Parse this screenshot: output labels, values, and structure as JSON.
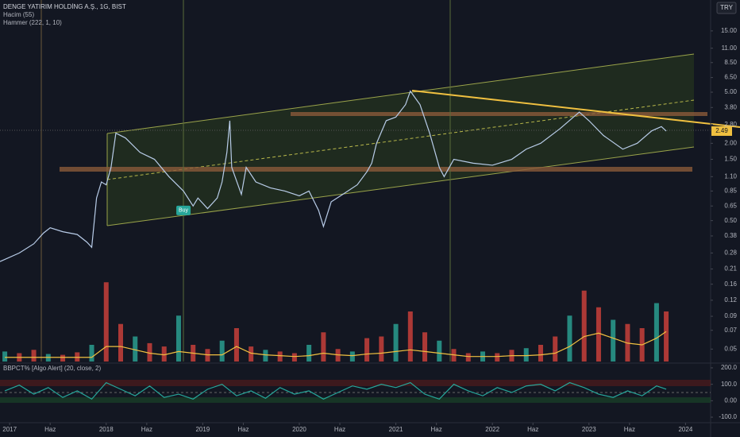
{
  "header": {
    "title": "DENGE YATIRIM HOLDİNG A.Ş., 1G, BIST",
    "volume_label": "Hacim (55)",
    "hammer_label": "Hammer (222, 1, 10)",
    "currency": "TRY",
    "oscillator_label": "BBPCT% [Algo Alert] (20, close, 2)"
  },
  "chart_data": [
    {
      "type": "line",
      "log_scale": true,
      "xlim": [
        2016.9,
        2024.26
      ],
      "xticks": [
        2017,
        {
          "value": 2017.42,
          "label": "Haz"
        },
        2018,
        {
          "value": 2018.42,
          "label": "Haz"
        },
        2019,
        {
          "value": 2019.42,
          "label": "Haz"
        },
        2020,
        {
          "value": 2020.42,
          "label": "Haz"
        },
        2021,
        {
          "value": 2021.42,
          "label": "Haz"
        },
        2022,
        {
          "value": 2022.42,
          "label": "Haz"
        },
        2023,
        {
          "value": 2023.42,
          "label": "Haz"
        },
        2024
      ],
      "ylim": [
        0.04,
        26.1
      ],
      "yticks": [
        {
          "value": 15,
          "label": "15.00"
        },
        {
          "value": 11,
          "label": "11.00"
        },
        {
          "value": 8.5,
          "label": "8.50"
        },
        {
          "value": 6.5,
          "label": "6.50"
        },
        {
          "value": 5,
          "label": "5.00"
        },
        {
          "value": 3.8,
          "label": "3.80"
        },
        {
          "value": 2.8,
          "label": "2.80"
        },
        {
          "value": 2,
          "label": "2.00"
        },
        {
          "value": 1.5,
          "label": "1.50"
        },
        {
          "value": 1.1,
          "label": "1.10"
        },
        {
          "value": 0.85,
          "label": "0.85"
        },
        {
          "value": 0.65,
          "label": "0.65"
        },
        {
          "value": 0.5,
          "label": "0.50"
        },
        {
          "value": 0.38,
          "label": "0.38"
        },
        {
          "value": 0.28,
          "label": "0.28"
        },
        {
          "value": 0.21,
          "label": "0.21"
        },
        {
          "value": 0.16,
          "label": "0.16"
        },
        {
          "value": 0.12,
          "label": "0.12"
        },
        {
          "value": 0.09,
          "label": "0.09"
        },
        {
          "value": 0.07,
          "label": "0.07"
        },
        {
          "value": 0.05,
          "label": "0.05"
        }
      ],
      "last_value": 2.49,
      "annotation": {
        "text": "Buy",
        "x": 2018.8,
        "y": 0.6
      },
      "x": [
        2016.9,
        2017.1,
        2017.25,
        2017.35,
        2017.42,
        2017.55,
        2017.7,
        2017.8,
        2017.85,
        2017.9,
        2017.95,
        2018.0,
        2018.05,
        2018.1,
        2018.2,
        2018.35,
        2018.5,
        2018.65,
        2018.8,
        2018.9,
        2018.95,
        2019.05,
        2019.15,
        2019.2,
        2019.25,
        2019.28,
        2019.3,
        2019.4,
        2019.45,
        2019.55,
        2019.7,
        2019.85,
        2020.0,
        2020.1,
        2020.2,
        2020.25,
        2020.33,
        2020.45,
        2020.6,
        2020.7,
        2020.75,
        2020.8,
        2020.9,
        2021.0,
        2021.1,
        2021.15,
        2021.25,
        2021.35,
        2021.45,
        2021.5,
        2021.6,
        2021.8,
        2022.0,
        2022.2,
        2022.35,
        2022.5,
        2022.7,
        2022.9,
        2023.0,
        2023.15,
        2023.35,
        2023.5,
        2023.65,
        2023.75,
        2023.8
      ],
      "series": [
        {
          "color": "#b8cce8",
          "values": [
            0.24,
            0.28,
            0.33,
            0.4,
            0.44,
            0.41,
            0.39,
            0.34,
            0.31,
            0.75,
            1.0,
            0.95,
            1.3,
            2.4,
            2.2,
            1.7,
            1.5,
            1.1,
            0.85,
            0.65,
            0.75,
            0.62,
            0.75,
            1.0,
            1.7,
            3.0,
            1.3,
            0.8,
            1.3,
            1.0,
            0.9,
            0.85,
            0.78,
            0.85,
            0.6,
            0.45,
            0.7,
            0.8,
            0.95,
            1.2,
            1.4,
            2.0,
            3.0,
            3.2,
            4.0,
            5.1,
            4.0,
            2.4,
            1.3,
            1.1,
            1.5,
            1.4,
            1.35,
            1.5,
            1.8,
            2.0,
            2.6,
            3.5,
            3.0,
            2.3,
            1.8,
            2.0,
            2.5,
            2.7,
            2.49
          ]
        }
      ]
    },
    {
      "type": "bar",
      "ylim": [
        0,
        100
      ],
      "x": [
        2016.95,
        2017.1,
        2017.25,
        2017.4,
        2017.55,
        2017.7,
        2017.85,
        2018.0,
        2018.15,
        2018.3,
        2018.45,
        2018.6,
        2018.75,
        2018.9,
        2019.05,
        2019.2,
        2019.35,
        2019.5,
        2019.65,
        2019.8,
        2019.95,
        2020.1,
        2020.25,
        2020.4,
        2020.55,
        2020.7,
        2020.85,
        2021.0,
        2021.15,
        2021.3,
        2021.45,
        2021.6,
        2021.75,
        2021.9,
        2022.05,
        2022.2,
        2022.35,
        2022.5,
        2022.65,
        2022.8,
        2022.95,
        2023.1,
        2023.25,
        2023.4,
        2023.55,
        2023.7,
        2023.8
      ],
      "series": [
        {
          "color": "#c8403a",
          "values": [
            12,
            10,
            14,
            9,
            8,
            11,
            20,
            95,
            45,
            30,
            22,
            18,
            55,
            20,
            15,
            25,
            40,
            18,
            14,
            12,
            10,
            20,
            35,
            15,
            12,
            28,
            30,
            45,
            60,
            35,
            25,
            15,
            10,
            12,
            10,
            14,
            16,
            20,
            30,
            55,
            85,
            65,
            50,
            45,
            40,
            70,
            60
          ]
        },
        {
          "color": "#f0c040",
          "kind": "line",
          "values": [
            5,
            5,
            5,
            5,
            5,
            5,
            5,
            18,
            18,
            14,
            10,
            8,
            12,
            10,
            8,
            8,
            18,
            10,
            8,
            7,
            6,
            7,
            10,
            8,
            7,
            9,
            10,
            12,
            14,
            12,
            10,
            8,
            6,
            6,
            6,
            7,
            7,
            8,
            10,
            18,
            30,
            34,
            28,
            22,
            20,
            28,
            36
          ]
        }
      ]
    },
    {
      "type": "line",
      "xlim": [
        2016.9,
        2024.26
      ],
      "ylim": [
        -124,
        224
      ],
      "yticks": [
        {
          "value": 200,
          "label": "200.0"
        },
        {
          "value": 100,
          "label": "100.0"
        },
        {
          "value": 0,
          "label": "0.00"
        },
        {
          "value": -100,
          "label": "-100.0"
        }
      ],
      "x": [
        2016.95,
        2017.1,
        2017.25,
        2017.4,
        2017.55,
        2017.7,
        2017.85,
        2018.0,
        2018.15,
        2018.3,
        2018.45,
        2018.6,
        2018.75,
        2018.9,
        2019.05,
        2019.2,
        2019.35,
        2019.5,
        2019.65,
        2019.8,
        2019.95,
        2020.1,
        2020.25,
        2020.4,
        2020.55,
        2020.7,
        2020.85,
        2021.0,
        2021.15,
        2021.3,
        2021.45,
        2021.6,
        2021.75,
        2021.9,
        2022.05,
        2022.2,
        2022.35,
        2022.5,
        2022.65,
        2022.8,
        2022.95,
        2023.1,
        2023.25,
        2023.4,
        2023.55,
        2023.7,
        2023.8
      ],
      "series": [
        {
          "color": "#26a69a",
          "values": [
            60,
            95,
            40,
            80,
            20,
            60,
            10,
            110,
            70,
            30,
            90,
            20,
            40,
            10,
            70,
            100,
            30,
            60,
            15,
            80,
            40,
            60,
            10,
            50,
            90,
            70,
            100,
            80,
            110,
            40,
            10,
            100,
            60,
            30,
            80,
            50,
            90,
            100,
            60,
            110,
            80,
            40,
            20,
            60,
            30,
            90,
            70
          ]
        }
      ]
    }
  ]
}
